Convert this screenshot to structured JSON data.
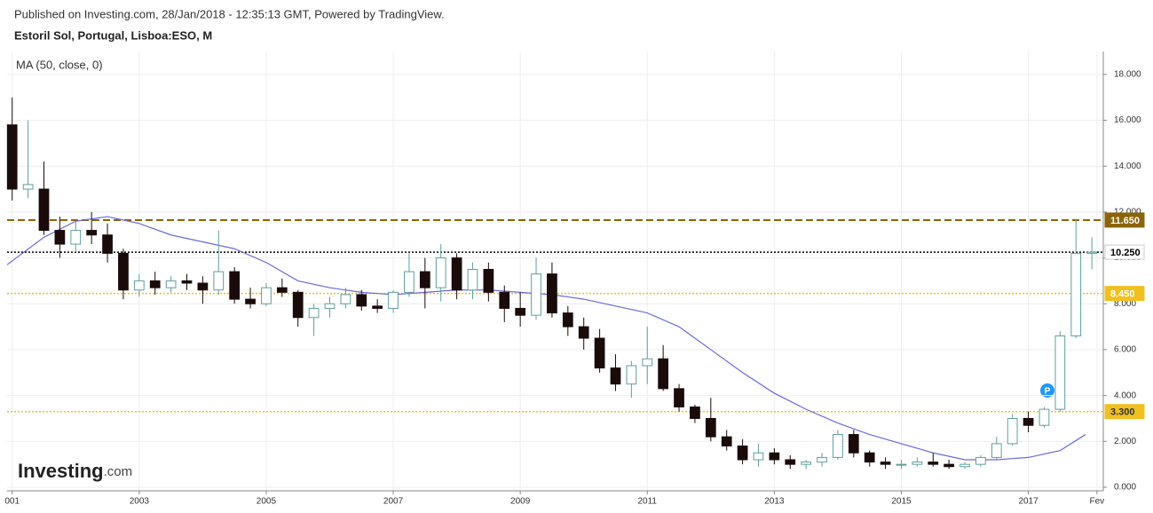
{
  "header": {
    "published": "Published on Investing.com, 28/Jan/2018 - 12:35:13 GMT, Powered by TradingView.",
    "logo": "Investing",
    "logo_suffix": ".com"
  },
  "chart_data": {
    "type": "candlestick",
    "title": "Estoril Sol, Portugal, Lisboa:ESO, M",
    "up_color": "#5f9ea0",
    "down_color": "#1a0a0a",
    "x": [
      2001.0,
      2001.25,
      2001.5,
      2001.75,
      2002.0,
      2002.25,
      2002.5,
      2002.75,
      2003.0,
      2003.25,
      2003.5,
      2003.75,
      2004.0,
      2004.25,
      2004.5,
      2004.75,
      2005.0,
      2005.25,
      2005.5,
      2005.75,
      2006.0,
      2006.25,
      2006.5,
      2006.75,
      2007.0,
      2007.25,
      2007.5,
      2007.75,
      2008.0,
      2008.25,
      2008.5,
      2008.75,
      2009.0,
      2009.25,
      2009.5,
      2009.75,
      2010.0,
      2010.25,
      2010.5,
      2010.75,
      2011.0,
      2011.25,
      2011.5,
      2011.75,
      2012.0,
      2012.25,
      2012.5,
      2012.75,
      2013.0,
      2013.25,
      2013.5,
      2013.75,
      2014.0,
      2014.25,
      2014.5,
      2014.75,
      2015.0,
      2015.25,
      2015.5,
      2015.75,
      2016.0,
      2016.25,
      2016.5,
      2016.75,
      2017.0,
      2017.25,
      2017.5,
      2017.75,
      2018.0
    ],
    "open": [
      15.8,
      13,
      13,
      11.2,
      10.6,
      11.2,
      11,
      10.2,
      8.6,
      9.0,
      8.7,
      9.0,
      8.9,
      8.6,
      9.4,
      8.2,
      8.0,
      8.7,
      8.5,
      7.4,
      7.8,
      8.0,
      8.4,
      7.9,
      7.8,
      8.5,
      9.4,
      8.7,
      10.0,
      8.6,
      9.5,
      8.5,
      7.8,
      7.5,
      9.3,
      7.6,
      7.0,
      6.5,
      5.2,
      4.5,
      5.3,
      5.6,
      4.3,
      3.5,
      3.0,
      2.2,
      1.8,
      1.2,
      1.5,
      1.2,
      1.0,
      1.1,
      1.3,
      2.3,
      1.5,
      1.1,
      1.0,
      1.0,
      1.1,
      1.0,
      0.9,
      1.0,
      1.3,
      1.9,
      3.0,
      2.7,
      3.4,
      6.6,
      10.2
    ],
    "high": [
      17,
      16,
      14.2,
      11.8,
      11.6,
      12,
      11.5,
      10.4,
      9.3,
      9.4,
      9.2,
      9.3,
      9.2,
      11.2,
      9.6,
      8.7,
      8.9,
      9.1,
      8.6,
      8.0,
      8.3,
      8.7,
      8.6,
      8.2,
      8.6,
      10.2,
      10.0,
      10.6,
      10.2,
      9.8,
      9.8,
      8.8,
      8.5,
      10.0,
      9.8,
      7.9,
      7.4,
      6.9,
      5.8,
      5.5,
      7.0,
      6.2,
      4.5,
      3.6,
      3.9,
      2.5,
      2.1,
      1.9,
      1.7,
      1.4,
      1.2,
      1.5,
      2.5,
      2.5,
      1.6,
      1.3,
      1.2,
      1.3,
      1.5,
      1.2,
      1.1,
      1.4,
      2.2,
      3.2,
      3.3,
      3.5,
      6.8,
      11.65,
      10.9
    ],
    "low": [
      12.5,
      12.6,
      11,
      10,
      10.3,
      10.6,
      9.8,
      8.2,
      8.3,
      8.4,
      8.5,
      8.6,
      8,
      8.4,
      8.0,
      7.8,
      7.9,
      8.3,
      7.0,
      6.6,
      7.4,
      7.8,
      7.7,
      7.6,
      7.6,
      8.3,
      7.8,
      8.1,
      8.2,
      8.2,
      8.1,
      7.2,
      7.0,
      7.3,
      7.4,
      6.6,
      6.0,
      5.0,
      4.2,
      3.9,
      4.5,
      4.2,
      3.3,
      2.8,
      2.0,
      1.6,
      1.0,
      0.9,
      1.0,
      0.8,
      0.8,
      0.9,
      1.2,
      1.3,
      0.9,
      0.8,
      0.8,
      0.9,
      0.9,
      0.8,
      0.8,
      0.9,
      1.2,
      1.8,
      2.4,
      2.6,
      3.3,
      6.5,
      9.5
    ],
    "close": [
      13,
      13.2,
      11.2,
      10.6,
      11.2,
      11,
      10.2,
      8.6,
      9.0,
      8.7,
      9.0,
      8.9,
      8.6,
      9.4,
      8.2,
      8.0,
      8.7,
      8.5,
      7.4,
      7.8,
      8.0,
      8.4,
      7.9,
      7.8,
      8.5,
      9.4,
      8.7,
      10.0,
      8.6,
      9.5,
      8.5,
      7.8,
      7.5,
      9.3,
      7.6,
      7.0,
      6.5,
      5.2,
      4.5,
      5.3,
      5.6,
      4.3,
      3.5,
      3.0,
      2.2,
      1.8,
      1.2,
      1.5,
      1.2,
      1.0,
      1.1,
      1.3,
      2.3,
      1.5,
      1.1,
      1.0,
      1.0,
      1.1,
      1.0,
      0.9,
      1.0,
      1.3,
      1.9,
      3.0,
      2.7,
      3.4,
      6.6,
      10.2,
      10.25
    ],
    "overlays": [
      {
        "name": "MA (50, close, 0)",
        "color": "#6a6ae0",
        "x": [
          2000.92,
          2001.5,
          2002.0,
          2002.5,
          2003.0,
          2003.5,
          2004.0,
          2004.5,
          2005.0,
          2005.5,
          2006.0,
          2006.5,
          2007.0,
          2007.5,
          2008.0,
          2008.5,
          2009.0,
          2009.5,
          2010.0,
          2010.5,
          2011.0,
          2011.5,
          2012.0,
          2012.5,
          2013.0,
          2013.5,
          2014.0,
          2014.5,
          2015.0,
          2015.5,
          2016.0,
          2016.5,
          2017.0,
          2017.5,
          2017.9
        ],
        "values": [
          9.7,
          10.9,
          11.6,
          11.8,
          11.5,
          11.0,
          10.7,
          10.4,
          9.8,
          9.0,
          8.7,
          8.5,
          8.4,
          8.5,
          8.6,
          8.6,
          8.5,
          8.4,
          8.2,
          7.9,
          7.6,
          7.0,
          6.0,
          5.0,
          4.1,
          3.4,
          2.8,
          2.3,
          1.9,
          1.5,
          1.2,
          1.2,
          1.3,
          1.6,
          2.3
        ]
      }
    ],
    "levels": [
      {
        "value": 11.65,
        "label": "11.650",
        "color": "#8b6508",
        "style": "dashed",
        "box_color": "#8b6508",
        "text_color": "#ffffff"
      },
      {
        "value": 10.25,
        "label": "10.250",
        "color": "#000000",
        "style": "dotted",
        "box_color": "#ffffff",
        "text_color": "#000000"
      },
      {
        "value": 8.45,
        "label": "8.450",
        "color": "#f0c020",
        "style": "dotted",
        "box_color": "#f0c020",
        "text_color": "#ffffff"
      },
      {
        "value": 3.3,
        "label": "3.300",
        "color": "#f0c020",
        "style": "dotted",
        "box_color": "#f0c020",
        "text_color": "#333333"
      }
    ],
    "xlim": [
      2000.92,
      2018.18
    ],
    "xticks": [
      {
        "value": 2001,
        "label": "001"
      },
      2003,
      2005,
      2007,
      2009,
      2011,
      2013,
      2015,
      2017,
      {
        "value": 2018.08,
        "label": "Fev"
      }
    ],
    "ylim": [
      0,
      19
    ],
    "yticks": [
      {
        "value": 0,
        "label": "0.000"
      },
      {
        "value": 2,
        "label": "2.000"
      },
      {
        "value": 4,
        "label": "4.000"
      },
      {
        "value": 6,
        "label": "6.000"
      },
      {
        "value": 8,
        "label": "8.000"
      },
      {
        "value": 10,
        "label": "10.000"
      },
      {
        "value": 12,
        "label": "12.000"
      },
      {
        "value": 14,
        "label": "14.000"
      },
      {
        "value": 16,
        "label": "16.000"
      },
      {
        "value": 18,
        "label": "18.000"
      }
    ],
    "grid": true
  }
}
